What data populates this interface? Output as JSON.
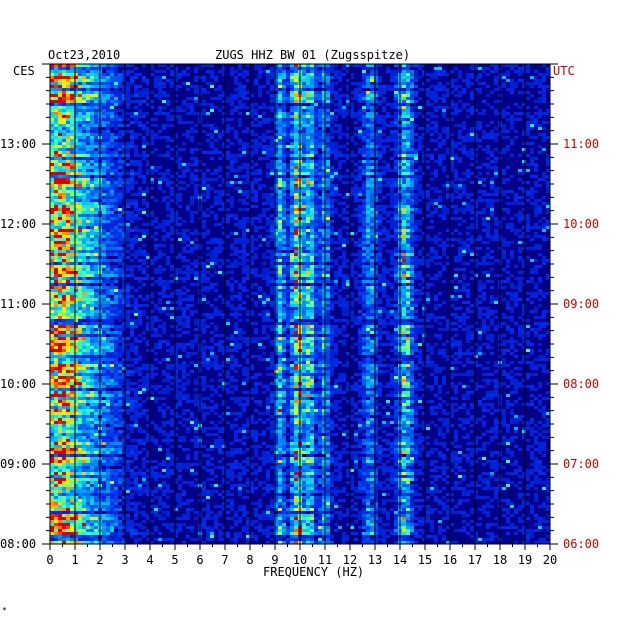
{
  "header": {
    "date": "Oct23,2010",
    "title": "ZUGS HHZ BW 01 (Zugsspitze)",
    "left_tz": "CES",
    "right_tz": "UTC"
  },
  "footer": {
    "corner_mark": "*"
  },
  "colors": {
    "background": "#000088",
    "utc_labels": "#cc0000",
    "grid": "#000000"
  },
  "chart_data": {
    "type": "heatmap",
    "title": "ZUGS HHZ BW 01 (Zugsspitze)",
    "xlabel": "FREQUENCY (HZ)",
    "xlim": [
      0,
      20
    ],
    "x_ticks": [
      "0",
      "1",
      "2",
      "3",
      "4",
      "5",
      "6",
      "7",
      "8",
      "9",
      "10",
      "11",
      "12",
      "13",
      "14",
      "15",
      "16",
      "17",
      "18",
      "19",
      "20"
    ],
    "y_ticks_left_ces": [
      "13:00",
      "12:00",
      "11:00",
      "10:00",
      "09:00",
      "08:00"
    ],
    "y_ticks_right_utc": [
      "11:00",
      "10:00",
      "09:00",
      "08:00",
      "07:00",
      "06:00"
    ],
    "time_range_ces": [
      "08:00",
      "14:00"
    ],
    "energy_bands_hz": [
      {
        "center": 0.3,
        "width": 0.8,
        "level": 0.9
      },
      {
        "center": 1.5,
        "width": 1.2,
        "level": 0.45
      },
      {
        "center": 9.9,
        "width": 0.25,
        "level": 0.85
      },
      {
        "center": 9.2,
        "width": 0.2,
        "level": 0.55
      },
      {
        "center": 10.4,
        "width": 0.2,
        "level": 0.6
      },
      {
        "center": 11.0,
        "width": 0.2,
        "level": 0.45
      },
      {
        "center": 14.2,
        "width": 0.3,
        "level": 0.6
      },
      {
        "center": 12.8,
        "width": 0.3,
        "level": 0.35
      }
    ],
    "grid": true
  }
}
